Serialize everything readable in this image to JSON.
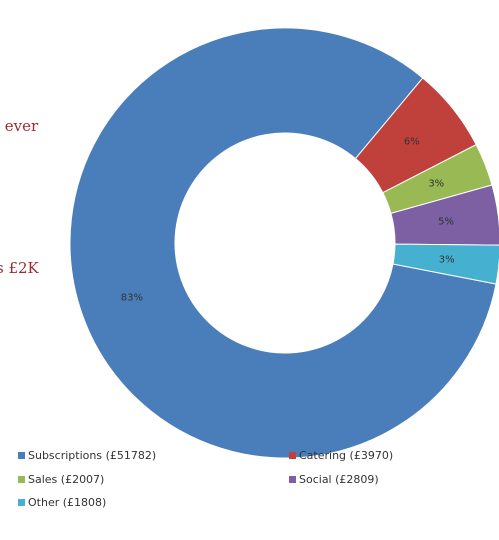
{
  "chart_data": {
    "type": "donut",
    "annotations": [
      "t ever",
      "s £2K"
    ],
    "categories": [
      "Subscriptions",
      "Catering",
      "Sales",
      "Social",
      "Other"
    ],
    "values": [
      51782,
      3970,
      2007,
      2809,
      1808
    ],
    "value_labels": [
      "83%",
      "6%",
      "3%",
      "5%",
      "3%"
    ],
    "legend_labels": [
      "Subscriptions (£51782)",
      "Catering (£3970)",
      "Sales (£2007)",
      "Social (£2809)",
      "Other (£1808)"
    ],
    "colors": [
      "#4a7ebb",
      "#c0403c",
      "#98b954",
      "#7d5fa3",
      "#46b0d0"
    ],
    "start_angle": 101
  }
}
